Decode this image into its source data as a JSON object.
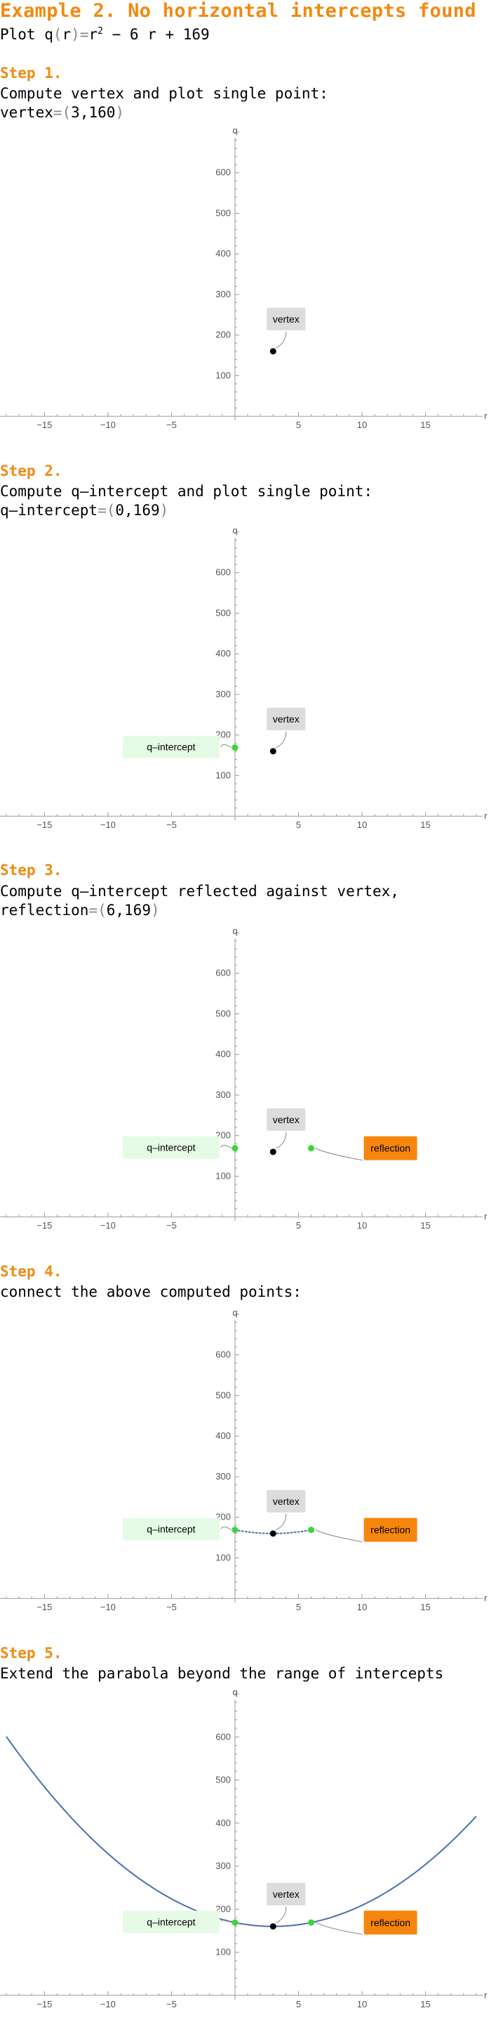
{
  "title": "Example 2. No horizontal intercepts found",
  "plot_intro": {
    "prefix": "Plot q",
    "var": "r",
    "equals": "=",
    "r": "r",
    "exp": "2",
    "rest": " − 6 r + 169"
  },
  "steps": [
    {
      "heading": "Step 1.",
      "text": "Compute vertex and plot single point:",
      "result_label": "vertex",
      "result_value": "3,160"
    },
    {
      "heading": "Step 2.",
      "text": "Compute q–intercept and plot single point:",
      "result_label": "q–intercept",
      "result_value": "0,169"
    },
    {
      "heading": "Step 3.",
      "text": "Compute q–intercept reflected against vertex,",
      "result_label": "reflection",
      "result_value": "6,169"
    },
    {
      "heading": "Step 4.",
      "text": "connect the above computed points:"
    },
    {
      "heading": "Step 5.",
      "text": "Extend the parabola beyond the range of intercepts"
    }
  ],
  "colors": {
    "accent": "#f08a12",
    "intercept_point": "#39d639",
    "vertex_point": "#000000",
    "curve": "#4a6fb0",
    "vertex_label_bg": "#dcdcdc",
    "intercept_label_bg": "#e6fbe6",
    "reflection_label_bg": "#f7860e"
  },
  "chart_data": [
    {
      "type": "scatter",
      "xlabel": "r",
      "ylabel": "q",
      "xlim": [
        -18.5,
        19.5
      ],
      "ylim": [
        -10,
        700
      ],
      "xticks": [
        -15,
        -10,
        -5,
        5,
        10,
        15
      ],
      "yticks": [
        100,
        200,
        300,
        400,
        500,
        600
      ],
      "points": [
        {
          "name": "vertex",
          "x": 3,
          "y": 160,
          "label": "vertex"
        }
      ]
    },
    {
      "type": "scatter",
      "xlabel": "r",
      "ylabel": "q",
      "xlim": [
        -18.5,
        19.5
      ],
      "ylim": [
        -10,
        700
      ],
      "xticks": [
        -15,
        -10,
        -5,
        5,
        10,
        15
      ],
      "yticks": [
        100,
        200,
        300,
        400,
        500,
        600
      ],
      "points": [
        {
          "name": "vertex",
          "x": 3,
          "y": 160,
          "label": "vertex"
        },
        {
          "name": "q-intercept",
          "x": 0,
          "y": 169,
          "label": "q–intercept"
        }
      ]
    },
    {
      "type": "scatter",
      "xlabel": "r",
      "ylabel": "q",
      "xlim": [
        -18.5,
        19.5
      ],
      "ylim": [
        -10,
        700
      ],
      "xticks": [
        -15,
        -10,
        -5,
        5,
        10,
        15
      ],
      "yticks": [
        100,
        200,
        300,
        400,
        500,
        600
      ],
      "points": [
        {
          "name": "vertex",
          "x": 3,
          "y": 160,
          "label": "vertex"
        },
        {
          "name": "q-intercept",
          "x": 0,
          "y": 169,
          "label": "q–intercept"
        },
        {
          "name": "reflection",
          "x": 6,
          "y": 169,
          "label": "reflection"
        }
      ]
    },
    {
      "type": "line",
      "xlabel": "r",
      "ylabel": "q",
      "xlim": [
        -18.5,
        19.5
      ],
      "ylim": [
        -10,
        700
      ],
      "xticks": [
        -15,
        -10,
        -5,
        5,
        10,
        15
      ],
      "yticks": [
        100,
        200,
        300,
        400,
        500,
        600
      ],
      "curve": {
        "style": "dotted",
        "domain": [
          0,
          6
        ],
        "a": 1,
        "b": -6,
        "c": 169
      },
      "points": [
        {
          "name": "vertex",
          "x": 3,
          "y": 160,
          "label": "vertex"
        },
        {
          "name": "q-intercept",
          "x": 0,
          "y": 169,
          "label": "q–intercept"
        },
        {
          "name": "reflection",
          "x": 6,
          "y": 169,
          "label": "reflection"
        }
      ]
    },
    {
      "type": "line",
      "xlabel": "r",
      "ylabel": "q",
      "xlim": [
        -18.5,
        19.5
      ],
      "ylim": [
        -10,
        700
      ],
      "xticks": [
        -15,
        -10,
        -5,
        5,
        10,
        15
      ],
      "yticks": [
        100,
        200,
        300,
        400,
        500,
        600
      ],
      "curve": {
        "style": "solid",
        "domain": [
          -18,
          19
        ],
        "a": 1,
        "b": -6,
        "c": 169
      },
      "points": [
        {
          "name": "vertex",
          "x": 3,
          "y": 160,
          "label": "vertex"
        },
        {
          "name": "q-intercept",
          "x": 0,
          "y": 169,
          "label": "q–intercept"
        },
        {
          "name": "reflection",
          "x": 6,
          "y": 169,
          "label": "reflection"
        }
      ]
    }
  ]
}
